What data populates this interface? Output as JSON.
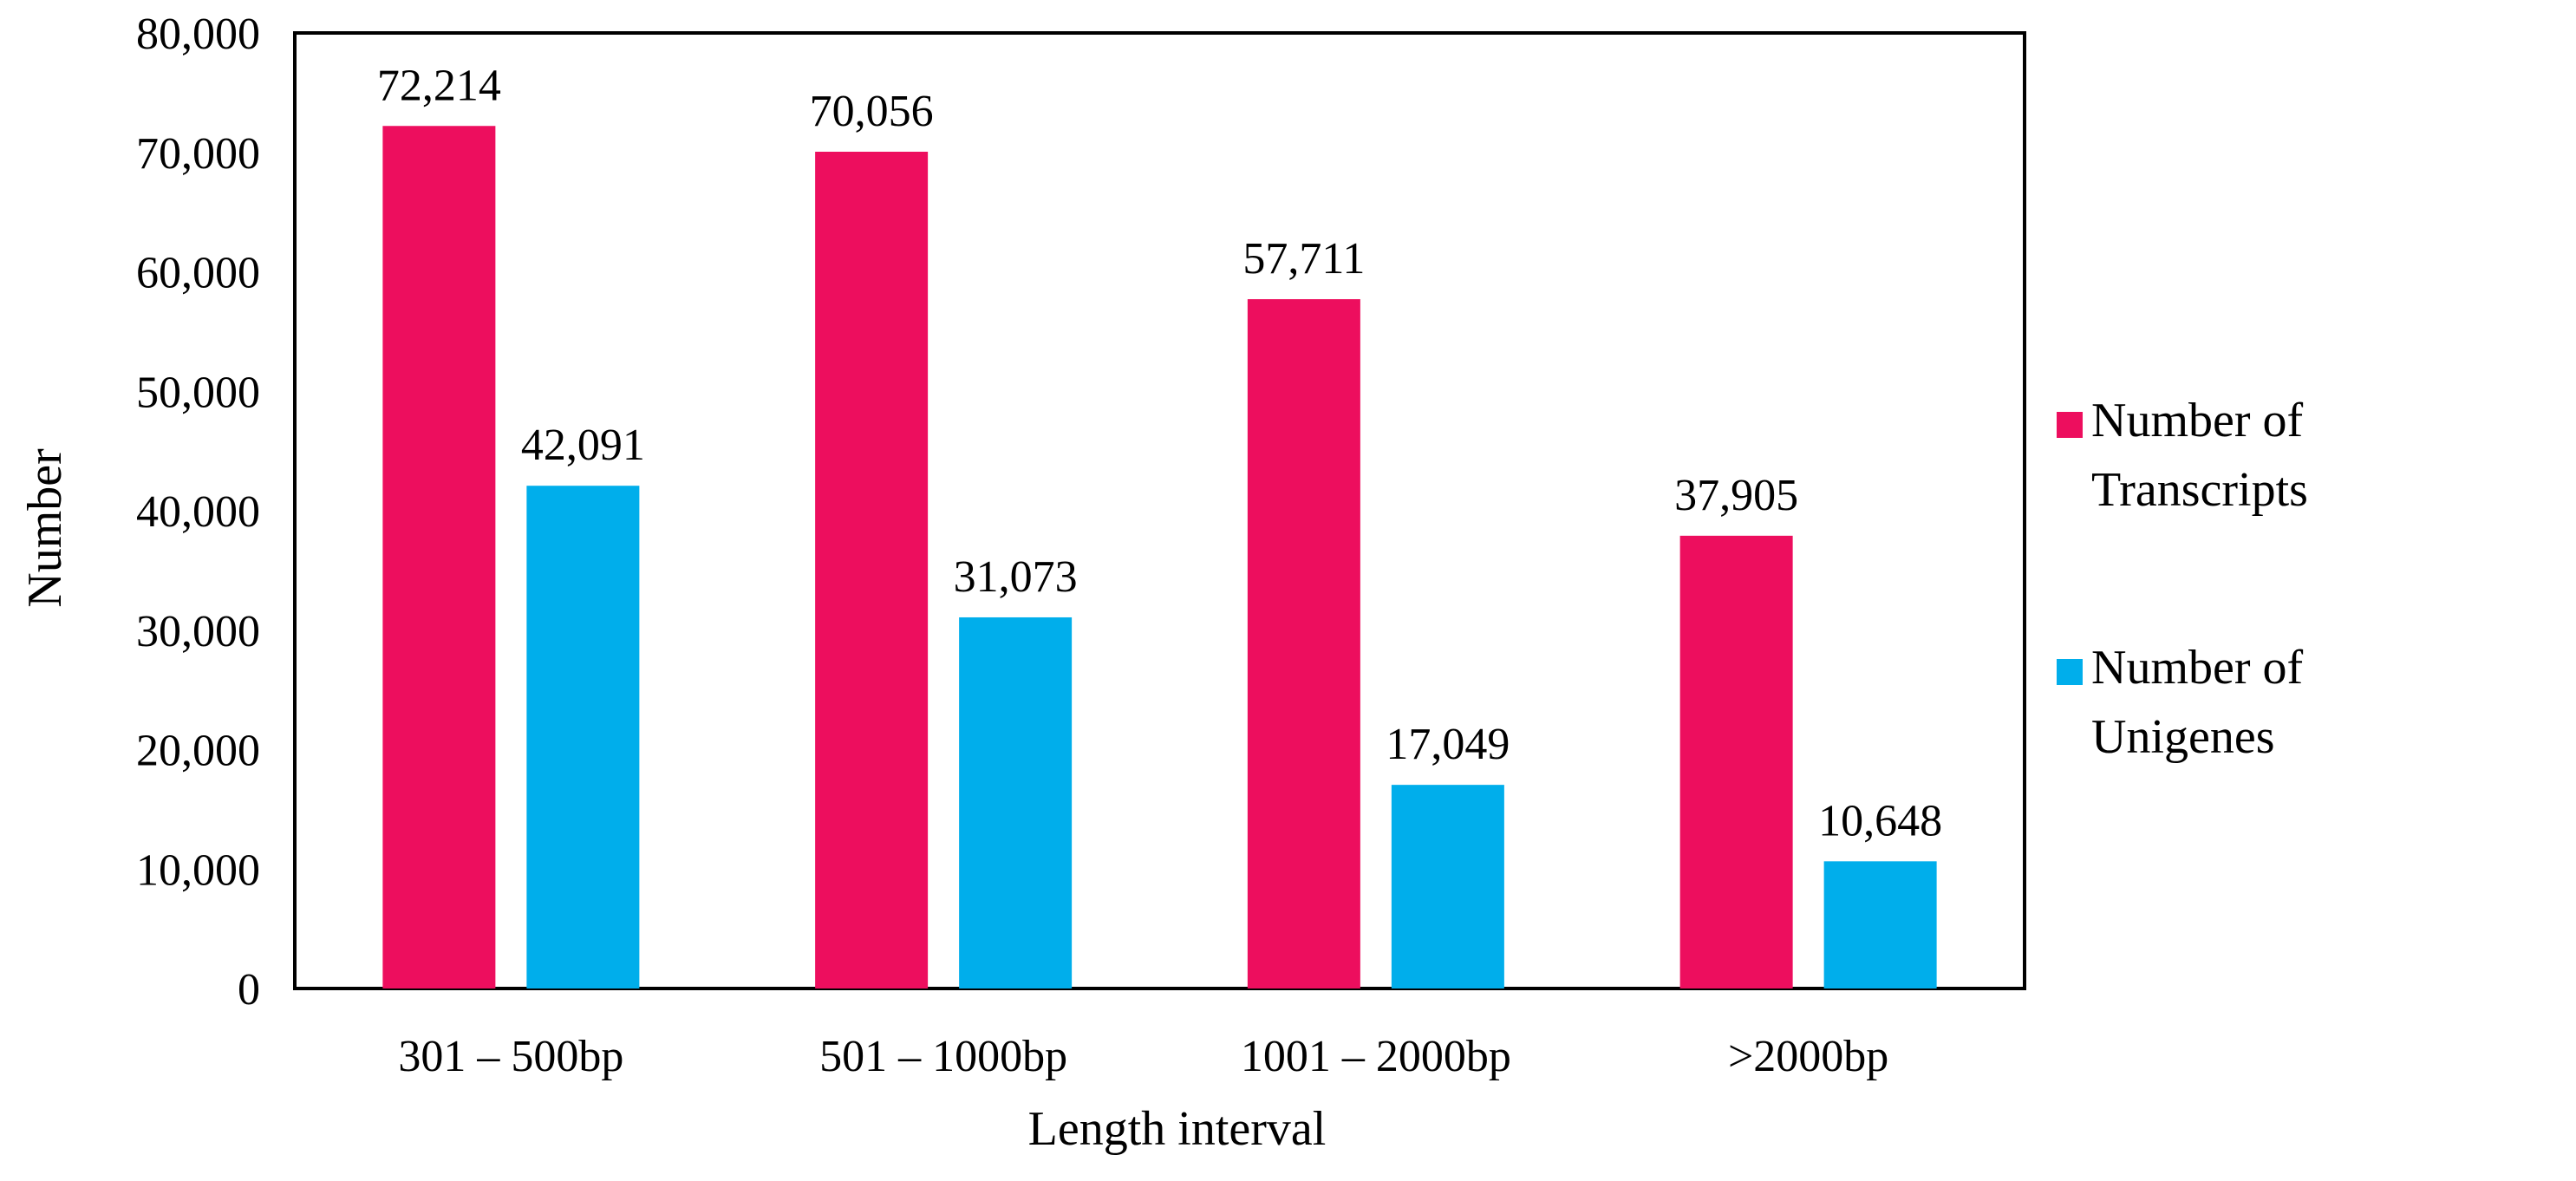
{
  "chart_data": {
    "type": "bar",
    "title": "",
    "xlabel": "Length interval",
    "ylabel": "Number",
    "ylim": [
      0,
      80000
    ],
    "yticks": [
      "0",
      "10,000",
      "20,000",
      "30,000",
      "40,000",
      "50,000",
      "60,000",
      "70,000",
      "80,000"
    ],
    "categories": [
      "301 – 500bp",
      "501 – 1000bp",
      "1001 – 2000bp",
      ">2000bp"
    ],
    "series": [
      {
        "name": "Number of Transcripts",
        "legend_lines": [
          "Number of",
          "Transcripts"
        ],
        "color": "#ED0E5E",
        "values": [
          72214,
          70056,
          57711,
          37905
        ],
        "labels": [
          "72,214",
          "70,056",
          "57,711",
          "37,905"
        ]
      },
      {
        "name": "Number of Unigenes",
        "legend_lines": [
          "Number of",
          "Unigenes"
        ],
        "color": "#00AEEB",
        "values": [
          42091,
          31073,
          17049,
          10648
        ],
        "labels": [
          "42,091",
          "31,073",
          "17,049",
          "10,648"
        ]
      }
    ],
    "grid": false,
    "legend": "right"
  }
}
